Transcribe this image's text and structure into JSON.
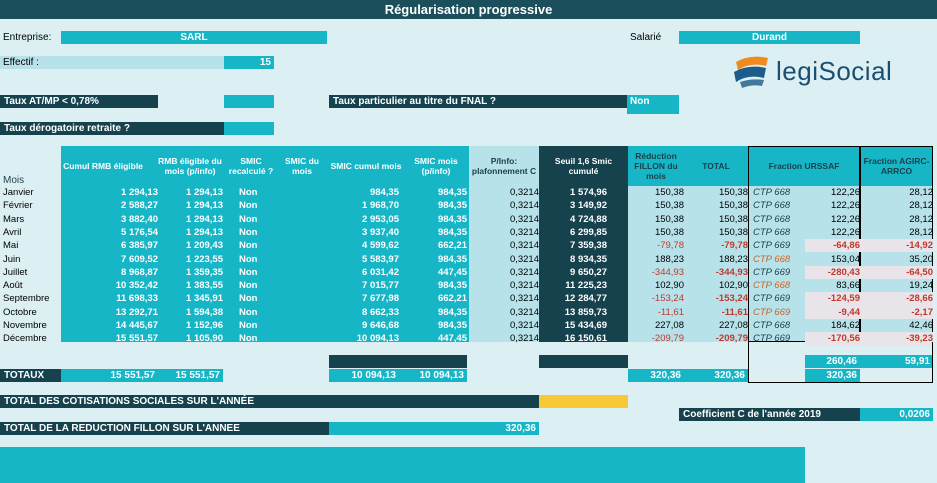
{
  "title": "Régularisation progressive",
  "fields": {
    "entreprise_label": "Entreprise:",
    "entreprise_value": "SARL",
    "salarie_label": "Salarié",
    "salarie_value": "Durand",
    "effectif_label": "Effectif :",
    "effectif_value": "15",
    "taux_atmp_label": "Taux AT/MP < 0,78%",
    "taux_atmp_value": "",
    "fnal_label": "Taux particulier au titre du FNAL ?",
    "fnal_value": "Non",
    "retraite_label": "Taux dérogatoire retraite ?",
    "retraite_value": ""
  },
  "logo": {
    "text_a": "legi",
    "text_b": "Social",
    "colors": {
      "orange": "#f08a1c",
      "blue": "#1b5c8a"
    }
  },
  "table": {
    "headers": [
      "Mois",
      "Cumul RMB éligible",
      "RMB éligible du mois (p/info)",
      "SMIC recalculé ?",
      "SMIC du mois",
      "SMIC cumul mois",
      "SMIC mois (p/info)",
      "P/Info: plafonnement C",
      "Seuil 1,6 Smic cumulé",
      "Réduction FILLON du mois",
      "TOTAL",
      "Fraction URSSAF",
      "Fraction AGIRC-ARRCO"
    ],
    "rows": [
      {
        "mois": "Janvier",
        "cumul": "1 294,13",
        "rmb": "1 294,13",
        "smic_recalc": "Non",
        "smic_mois": "",
        "smic_cumul": "984,35",
        "smic_info": "984,35",
        "plaf": "0,3214",
        "seuil": "1 574,96",
        "reduc": "150,38",
        "total": "150,38",
        "ctp": "CTP 668",
        "urssaf": "122,26",
        "agirc": "28,12",
        "neg": false
      },
      {
        "mois": "Février",
        "cumul": "2 588,27",
        "rmb": "1 294,13",
        "smic_recalc": "Non",
        "smic_mois": "",
        "smic_cumul": "1 968,70",
        "smic_info": "984,35",
        "plaf": "0,3214",
        "seuil": "3 149,92",
        "reduc": "150,38",
        "total": "150,38",
        "ctp": "CTP 668",
        "urssaf": "122,26",
        "agirc": "28,12",
        "neg": false
      },
      {
        "mois": "Mars",
        "cumul": "3 882,40",
        "rmb": "1 294,13",
        "smic_recalc": "Non",
        "smic_mois": "",
        "smic_cumul": "2 953,05",
        "smic_info": "984,35",
        "plaf": "0,3214",
        "seuil": "4 724,88",
        "reduc": "150,38",
        "total": "150,38",
        "ctp": "CTP 668",
        "urssaf": "122,26",
        "agirc": "28,12",
        "neg": false
      },
      {
        "mois": "Avril",
        "cumul": "5 176,54",
        "rmb": "1 294,13",
        "smic_recalc": "Non",
        "smic_mois": "",
        "smic_cumul": "3 937,40",
        "smic_info": "984,35",
        "plaf": "0,3214",
        "seuil": "6 299,85",
        "reduc": "150,38",
        "total": "150,38",
        "ctp": "CTP 668",
        "urssaf": "122,26",
        "agirc": "28,12",
        "neg": false
      },
      {
        "mois": "Mai",
        "cumul": "6 385,97",
        "rmb": "1 209,43",
        "smic_recalc": "Non",
        "smic_mois": "",
        "smic_cumul": "4 599,62",
        "smic_info": "662,21",
        "plaf": "0,3214",
        "seuil": "7 359,38",
        "reduc": "-79,78",
        "total": "-79,78",
        "ctp": "CTP 669",
        "urssaf": "-64,86",
        "agirc": "-14,92",
        "neg": true
      },
      {
        "mois": "Juin",
        "cumul": "7 609,52",
        "rmb": "1 223,55",
        "smic_recalc": "Non",
        "smic_mois": "",
        "smic_cumul": "5 583,97",
        "smic_info": "984,35",
        "plaf": "0,3214",
        "seuil": "8 934,35",
        "reduc": "188,23",
        "total": "188,23",
        "ctp": "CTP 668",
        "urssaf": "153,04",
        "agirc": "35,20",
        "neg": false
      },
      {
        "mois": "Juillet",
        "cumul": "8 968,87",
        "rmb": "1 359,35",
        "smic_recalc": "Non",
        "smic_mois": "",
        "smic_cumul": "6 031,42",
        "smic_info": "447,45",
        "plaf": "0,3214",
        "seuil": "9 650,27",
        "reduc": "-344,93",
        "total": "-344,93",
        "ctp": "CTP 669",
        "urssaf": "-280,43",
        "agirc": "-64,50",
        "neg": true
      },
      {
        "mois": "Août",
        "cumul": "10 352,42",
        "rmb": "1 383,55",
        "smic_recalc": "Non",
        "smic_mois": "",
        "smic_cumul": "7 015,77",
        "smic_info": "984,35",
        "plaf": "0,3214",
        "seuil": "11 225,23",
        "reduc": "102,90",
        "total": "102,90",
        "ctp": "CTP 668",
        "urssaf": "83,66",
        "agirc": "19,24",
        "neg": false
      },
      {
        "mois": "Septembre",
        "cumul": "11 698,33",
        "rmb": "1 345,91",
        "smic_recalc": "Non",
        "smic_mois": "",
        "smic_cumul": "7 677,98",
        "smic_info": "662,21",
        "plaf": "0,3214",
        "seuil": "12 284,77",
        "reduc": "-153,24",
        "total": "-153,24",
        "ctp": "CTP 669",
        "urssaf": "-124,59",
        "agirc": "-28,66",
        "neg": true
      },
      {
        "mois": "Octobre",
        "cumul": "13 292,71",
        "rmb": "1 594,38",
        "smic_recalc": "Non",
        "smic_mois": "",
        "smic_cumul": "8 662,33",
        "smic_info": "984,35",
        "plaf": "0,3214",
        "seuil": "13 859,73",
        "reduc": "-11,61",
        "total": "-11,61",
        "ctp": "CTP 669",
        "urssaf": "-9,44",
        "agirc": "-2,17",
        "neg": true
      },
      {
        "mois": "Novembre",
        "cumul": "14 445,67",
        "rmb": "1 152,96",
        "smic_recalc": "Non",
        "smic_mois": "",
        "smic_cumul": "9 646,68",
        "smic_info": "984,35",
        "plaf": "0,3214",
        "seuil": "15 434,69",
        "reduc": "227,08",
        "total": "227,08",
        "ctp": "CTP 668",
        "urssaf": "184,62",
        "agirc": "42,46",
        "neg": false
      },
      {
        "mois": "Décembre",
        "cumul": "15 551,57",
        "rmb": "1 105,90",
        "smic_recalc": "Non",
        "smic_mois": "",
        "smic_cumul": "10 094,13",
        "smic_info": "447,45",
        "plaf": "0,3214",
        "seuil": "16 150,61",
        "reduc": "-209,79",
        "total": "-209,79",
        "ctp": "CTP 669",
        "urssaf": "-170,56",
        "agirc": "-39,23",
        "neg": true
      }
    ],
    "fraction_totals": {
      "urssaf": "260,46",
      "agirc": "59,91"
    },
    "totaux": {
      "label": "TOTAUX",
      "cumul": "15 551,57",
      "rmb": "15 551,57",
      "smic_cumul": "10 094,13",
      "smic_info": "10 094,13",
      "reduc": "320,36",
      "total": "320,36",
      "urssaf": "320,36"
    }
  },
  "footer": {
    "cotisations_label": "TOTAL DES COTISATIONS SOCIALES SUR L'ANNÉE",
    "coef_label": "Coefficient C de l'année 2019",
    "coef_value": "0,0206",
    "fillon_label": "TOTAL DE LA REDUCTION FILLON SUR L'ANNEE",
    "fillon_value": "320,36"
  }
}
